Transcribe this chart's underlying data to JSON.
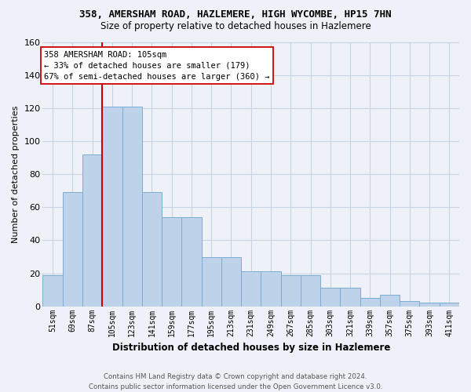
{
  "title_line1": "358, AMERSHAM ROAD, HAZLEMERE, HIGH WYCOMBE, HP15 7HN",
  "title_line2": "Size of property relative to detached houses in Hazlemere",
  "xlabel": "Distribution of detached houses by size in Hazlemere",
  "ylabel": "Number of detached properties",
  "categories": [
    "51sqm",
    "69sqm",
    "87sqm",
    "105sqm",
    "123sqm",
    "141sqm",
    "159sqm",
    "177sqm",
    "195sqm",
    "213sqm",
    "231sqm",
    "249sqm",
    "267sqm",
    "285sqm",
    "303sqm",
    "321sqm",
    "339sqm",
    "357sqm",
    "375sqm",
    "393sqm",
    "411sqm"
  ],
  "bar_values": [
    19,
    69,
    92,
    121,
    121,
    69,
    54,
    54,
    30,
    30,
    21,
    21,
    19,
    19,
    11,
    11,
    5,
    7,
    3,
    2,
    2
  ],
  "bar_color": "#bed3ea",
  "bar_edge_color": "#7aadd4",
  "grid_color": "#c8d4e4",
  "vline_color": "#cc0000",
  "annotation_text": "358 AMERSHAM ROAD: 105sqm\n← 33% of detached houses are smaller (179)\n67% of semi-detached houses are larger (360) →",
  "annotation_box_color": "#ffffff",
  "annotation_box_edge": "#cc0000",
  "ylim": [
    0,
    160
  ],
  "yticks": [
    0,
    20,
    40,
    60,
    80,
    100,
    120,
    140,
    160
  ],
  "footer": "Contains HM Land Registry data © Crown copyright and database right 2024.\nContains public sector information licensed under the Open Government Licence v3.0.",
  "bg_color": "#eef2f8"
}
